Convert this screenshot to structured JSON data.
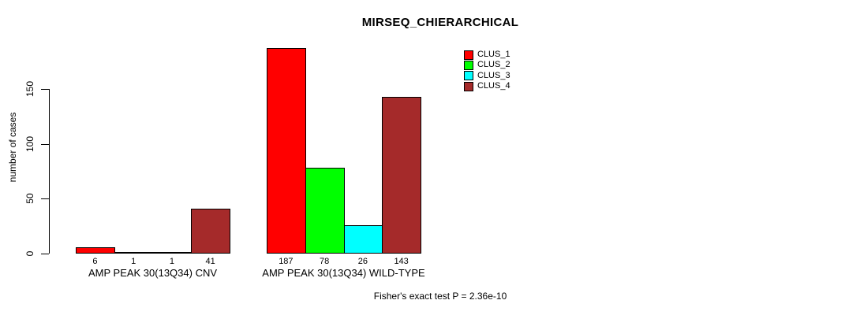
{
  "chart_data": {
    "type": "bar",
    "title": "MIRSEQ_CHIERARCHICAL",
    "ylabel": "number of cases",
    "ylim": [
      0,
      150
    ],
    "yticks": [
      "0",
      "50",
      "100",
      "150"
    ],
    "grid": false,
    "legend_position": "top-right",
    "categories": [
      "AMP PEAK 30(13Q34) CNV",
      "AMP PEAK 30(13Q34) WILD-TYPE"
    ],
    "series": [
      {
        "name": "CLUS_1",
        "color": "#FF0000",
        "values": [
          6,
          187
        ]
      },
      {
        "name": "CLUS_2",
        "color": "#00FF00",
        "values": [
          1,
          78
        ]
      },
      {
        "name": "CLUS_3",
        "color": "#00FFFF",
        "values": [
          1,
          26
        ]
      },
      {
        "name": "CLUS_4",
        "color": "#A52A2A",
        "values": [
          41,
          143
        ]
      }
    ],
    "annotation": "Fisher's exact test P = 2.36e-10"
  }
}
